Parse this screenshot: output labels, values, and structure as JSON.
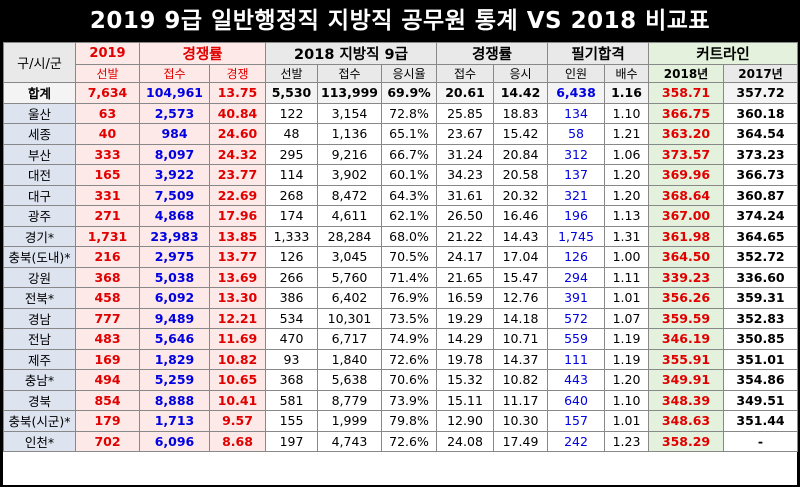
{
  "title": "2019 9급 일반행정직 지방직 공무원 통계 VS 2018 비교표",
  "headers": {
    "region": "구/시/군",
    "y2019": "2019",
    "comp2019": "경쟁률",
    "local2018": "2018 지방직 9급",
    "comp2018": "경쟁률",
    "written": "필기합격",
    "cutline": "커트라인",
    "sub": {
      "select2019": "선발",
      "apply": "접수",
      "compete": "경쟁",
      "select2018": "선발",
      "apply2018": "접수",
      "rate": "응시율",
      "capply": "접수",
      "ctest": "응시",
      "people": "인원",
      "multiple": "배수",
      "cut2018": "2018년",
      "cut2017": "2017년"
    }
  },
  "rows": [
    {
      "region": "합계",
      "sel19": "7,634",
      "app19": "104,961",
      "comp19": "13.75",
      "sel18": "5,530",
      "app18": "113,999",
      "rate": "69.9%",
      "capp": "20.61",
      "ctest": "14.42",
      "ppl": "6,438",
      "mult": "1.16",
      "cut18": "358.71",
      "cut17": "357.72"
    },
    {
      "region": "울산",
      "sel19": "63",
      "app19": "2,573",
      "comp19": "40.84",
      "sel18": "122",
      "app18": "3,154",
      "rate": "72.8%",
      "capp": "25.85",
      "ctest": "18.83",
      "ppl": "134",
      "mult": "1.10",
      "cut18": "366.75",
      "cut17": "360.18"
    },
    {
      "region": "세종",
      "sel19": "40",
      "app19": "984",
      "comp19": "24.60",
      "sel18": "48",
      "app18": "1,136",
      "rate": "65.1%",
      "capp": "23.67",
      "ctest": "15.42",
      "ppl": "58",
      "mult": "1.21",
      "cut18": "363.20",
      "cut17": "364.54"
    },
    {
      "region": "부산",
      "sel19": "333",
      "app19": "8,097",
      "comp19": "24.32",
      "sel18": "295",
      "app18": "9,216",
      "rate": "66.7%",
      "capp": "31.24",
      "ctest": "20.84",
      "ppl": "312",
      "mult": "1.06",
      "cut18": "373.57",
      "cut17": "373.23"
    },
    {
      "region": "대전",
      "sel19": "165",
      "app19": "3,922",
      "comp19": "23.77",
      "sel18": "114",
      "app18": "3,902",
      "rate": "60.1%",
      "capp": "34.23",
      "ctest": "20.58",
      "ppl": "137",
      "mult": "1.20",
      "cut18": "369.96",
      "cut17": "366.73"
    },
    {
      "region": "대구",
      "sel19": "331",
      "app19": "7,509",
      "comp19": "22.69",
      "sel18": "268",
      "app18": "8,472",
      "rate": "64.3%",
      "capp": "31.61",
      "ctest": "20.32",
      "ppl": "321",
      "mult": "1.20",
      "cut18": "368.64",
      "cut17": "360.87"
    },
    {
      "region": "광주",
      "sel19": "271",
      "app19": "4,868",
      "comp19": "17.96",
      "sel18": "174",
      "app18": "4,611",
      "rate": "62.1%",
      "capp": "26.50",
      "ctest": "16.46",
      "ppl": "196",
      "mult": "1.13",
      "cut18": "367.00",
      "cut17": "374.24"
    },
    {
      "region": "경기*",
      "sel19": "1,731",
      "app19": "23,983",
      "comp19": "13.85",
      "sel18": "1,333",
      "app18": "28,284",
      "rate": "68.0%",
      "capp": "21.22",
      "ctest": "14.43",
      "ppl": "1,745",
      "mult": "1.31",
      "cut18": "361.98",
      "cut17": "364.65"
    },
    {
      "region": "충북(도내)*",
      "sel19": "216",
      "app19": "2,975",
      "comp19": "13.77",
      "sel18": "126",
      "app18": "3,045",
      "rate": "70.5%",
      "capp": "24.17",
      "ctest": "17.04",
      "ppl": "126",
      "mult": "1.00",
      "cut18": "364.50",
      "cut17": "352.72"
    },
    {
      "region": "강원",
      "sel19": "368",
      "app19": "5,038",
      "comp19": "13.69",
      "sel18": "266",
      "app18": "5,760",
      "rate": "71.4%",
      "capp": "21.65",
      "ctest": "15.47",
      "ppl": "294",
      "mult": "1.11",
      "cut18": "339.23",
      "cut17": "336.60"
    },
    {
      "region": "전북*",
      "sel19": "458",
      "app19": "6,092",
      "comp19": "13.30",
      "sel18": "386",
      "app18": "6,402",
      "rate": "76.9%",
      "capp": "16.59",
      "ctest": "12.76",
      "ppl": "391",
      "mult": "1.01",
      "cut18": "356.26",
      "cut17": "359.31"
    },
    {
      "region": "경남",
      "sel19": "777",
      "app19": "9,489",
      "comp19": "12.21",
      "sel18": "534",
      "app18": "10,301",
      "rate": "73.5%",
      "capp": "19.29",
      "ctest": "14.18",
      "ppl": "572",
      "mult": "1.07",
      "cut18": "359.59",
      "cut17": "352.83"
    },
    {
      "region": "전남",
      "sel19": "483",
      "app19": "5,646",
      "comp19": "11.69",
      "sel18": "470",
      "app18": "6,717",
      "rate": "74.9%",
      "capp": "14.29",
      "ctest": "10.71",
      "ppl": "559",
      "mult": "1.19",
      "cut18": "346.19",
      "cut17": "350.85"
    },
    {
      "region": "제주",
      "sel19": "169",
      "app19": "1,829",
      "comp19": "10.82",
      "sel18": "93",
      "app18": "1,840",
      "rate": "72.6%",
      "capp": "19.78",
      "ctest": "14.37",
      "ppl": "111",
      "mult": "1.19",
      "cut18": "355.91",
      "cut17": "351.01"
    },
    {
      "region": "충남*",
      "sel19": "494",
      "app19": "5,259",
      "comp19": "10.65",
      "sel18": "368",
      "app18": "5,638",
      "rate": "70.6%",
      "capp": "15.32",
      "ctest": "10.82",
      "ppl": "443",
      "mult": "1.20",
      "cut18": "349.91",
      "cut17": "354.86"
    },
    {
      "region": "경북",
      "sel19": "854",
      "app19": "8,888",
      "comp19": "10.41",
      "sel18": "581",
      "app18": "8,779",
      "rate": "73.9%",
      "capp": "15.11",
      "ctest": "11.17",
      "ppl": "640",
      "mult": "1.10",
      "cut18": "348.39",
      "cut17": "349.51"
    },
    {
      "region": "충북(시군)*",
      "sel19": "179",
      "app19": "1,713",
      "comp19": "9.57",
      "sel18": "155",
      "app18": "1,999",
      "rate": "79.8%",
      "capp": "12.90",
      "ctest": "10.30",
      "ppl": "157",
      "mult": "1.01",
      "cut18": "348.63",
      "cut17": "351.44"
    },
    {
      "region": "인천*",
      "sel19": "702",
      "app19": "6,096",
      "comp19": "8.68",
      "sel18": "197",
      "app18": "4,743",
      "rate": "72.6%",
      "capp": "24.08",
      "ctest": "17.49",
      "ppl": "242",
      "mult": "1.23",
      "cut18": "358.29",
      "cut17": "-"
    }
  ],
  "colors": {
    "red": "#e00000",
    "blue": "#0000e0",
    "pink": "#fde9e7",
    "green": "#e4f1dc",
    "rowlabel": "#dde3ef"
  }
}
